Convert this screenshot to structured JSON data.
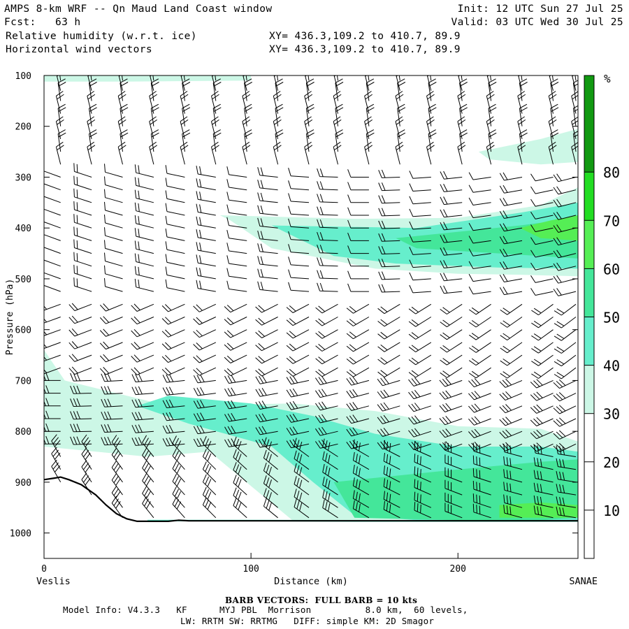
{
  "header": {
    "title": "AMPS 8-km WRF -- Qn Maud Land Coast window",
    "forecast": "Fcst:   63 h",
    "field1": "Relative humidity (w.r.t. ice)",
    "field2": "Horizontal wind vectors",
    "init": "Init: 12 UTC Sun 27 Jul 25",
    "valid": "Valid: 03 UTC Wed 30 Jul 25",
    "xy1": "XY= 436.3,109.2 to 410.7, 89.9",
    "xy2": "XY= 436.3,109.2 to 410.7, 89.9"
  },
  "footer": {
    "barb_note": "BARB VECTORS:  FULL BARB = 10 kts",
    "model_info": "Model Info: V4.3.3   KF      MYJ PBL  Morrison          8.0 km,  60 levels,",
    "physics": "LW: RRTM SW: RRTMG   DIFF: simple KM: 2D Smagor"
  },
  "chart_data": {
    "type": "heatmap",
    "ylabel": "Pressure (hPa)",
    "xlabel": "Distance (km)",
    "x_start_label": "Veslis",
    "x_end_label": "SANAE",
    "xlim": [
      0,
      258
    ],
    "ylim": [
      1050,
      100
    ],
    "x_ticks": [
      "0",
      "100",
      "200"
    ],
    "y_ticks": [
      "100",
      "200",
      "300",
      "400",
      "500",
      "600",
      "700",
      "800",
      "900",
      "1000"
    ],
    "colorbar": {
      "unit": "%",
      "labels": [
        "10",
        "20",
        "30",
        "40",
        "50",
        "60",
        "70",
        "80"
      ],
      "bins": [
        {
          "min": 0,
          "max": 30,
          "color": "#ffffff"
        },
        {
          "min": 30,
          "max": 40,
          "color": "#ccf7e6"
        },
        {
          "min": 40,
          "max": 50,
          "color": "#66eecc"
        },
        {
          "min": 50,
          "max": 60,
          "color": "#44e69a"
        },
        {
          "min": 60,
          "max": 70,
          "color": "#55ee55"
        },
        {
          "min": 70,
          "max": 80,
          "color": "#22dd22"
        },
        {
          "min": 80,
          "max": 100,
          "color": "#119911"
        }
      ]
    },
    "rh_regions": [
      {
        "level": "30-40",
        "x": [
          0,
          10,
          40,
          80,
          100,
          100,
          40,
          0
        ],
        "y": [
          100,
          100,
          98,
          98,
          100,
          110,
          112,
          112
        ]
      },
      {
        "level": "30-40",
        "x": [
          210,
          240,
          258,
          258,
          240,
          215
        ],
        "y": [
          250,
          225,
          205,
          270,
          275,
          265
        ]
      },
      {
        "level": "30-40",
        "x": [
          85,
          150,
          200,
          240,
          258,
          258,
          230,
          200,
          160,
          110,
          90
        ],
        "y": [
          375,
          382,
          380,
          355,
          320,
          495,
          492,
          490,
          480,
          440,
          385
        ]
      },
      {
        "level": "40-50",
        "x": [
          110,
          180,
          230,
          258,
          258,
          220,
          170,
          140
        ],
        "y": [
          395,
          400,
          370,
          350,
          480,
          478,
          470,
          455
        ]
      },
      {
        "level": "50-60",
        "x": [
          170,
          230,
          258,
          258,
          220,
          180
        ],
        "y": [
          420,
          395,
          380,
          460,
          450,
          440
        ]
      },
      {
        "level": "60-70",
        "x": [
          230,
          245,
          258,
          258,
          240
        ],
        "y": [
          400,
          385,
          375,
          425,
          420
        ]
      },
      {
        "level": "30-40",
        "x": [
          0,
          10,
          60,
          120,
          160,
          200,
          240,
          258,
          258,
          230,
          200,
          150,
          120,
          80,
          50,
          0
        ],
        "y": [
          640,
          700,
          750,
          745,
          760,
          790,
          795,
          820,
          975,
          975,
          975,
          975,
          975,
          840,
          850,
          830
        ]
      },
      {
        "level": "40-50",
        "x": [
          45,
          60,
          100,
          130,
          160,
          200,
          240,
          258,
          258,
          230,
          180,
          150,
          130,
          110,
          70
        ],
        "y": [
          750,
          730,
          745,
          770,
          805,
          830,
          830,
          840,
          975,
          975,
          975,
          965,
          900,
          830,
          785
        ]
      },
      {
        "level": "50-60",
        "x": [
          140,
          200,
          240,
          258,
          258,
          240,
          200,
          150
        ],
        "y": [
          900,
          875,
          860,
          855,
          970,
          975,
          975,
          970
        ]
      },
      {
        "level": "60-70",
        "x": [
          220,
          240,
          258,
          258,
          240,
          220
        ],
        "y": [
          945,
          940,
          945,
          970,
          970,
          970
        ]
      },
      {
        "level": "40-50",
        "x": [
          50,
          100,
          150,
          200,
          258,
          258,
          200,
          150,
          100,
          50
        ],
        "y": [
          974,
          974,
          975,
          976,
          975,
          978,
          978,
          978,
          977,
          977
        ]
      }
    ],
    "terrain": {
      "x": [
        0,
        5,
        8,
        12,
        18,
        25,
        30,
        35,
        40,
        45,
        50,
        60,
        65,
        70,
        80,
        100,
        130,
        160,
        200,
        240,
        258
      ],
      "p": [
        895,
        892,
        890,
        895,
        905,
        925,
        945,
        962,
        972,
        977,
        977,
        977,
        975,
        976,
        976,
        976,
        976,
        976,
        976,
        976,
        976
      ]
    },
    "wind_columns_x": [
      8,
      23,
      38,
      53,
      68,
      83,
      98,
      113,
      128,
      142,
      157,
      172,
      187,
      202,
      216,
      231,
      246,
      257
    ],
    "wind_levels_hpa": [
      110,
      130,
      150,
      175,
      200,
      225,
      250,
      275,
      300,
      325,
      350,
      375,
      400,
      425,
      450,
      475,
      500,
      525,
      550,
      575,
      600,
      625,
      650,
      675,
      700,
      725,
      750,
      775,
      800,
      825,
      850,
      875,
      900,
      925,
      950,
      970
    ]
  }
}
